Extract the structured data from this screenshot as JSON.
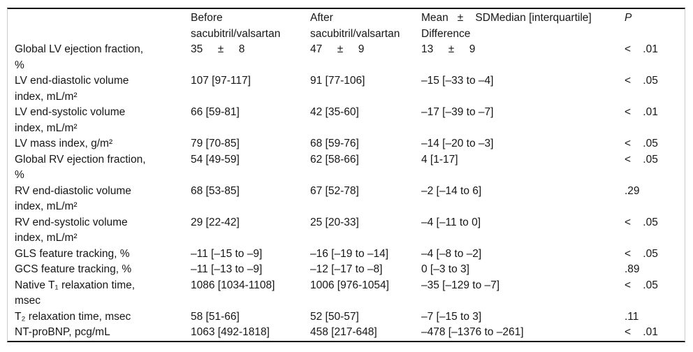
{
  "table": {
    "col_headers": {
      "label": "",
      "before": "Before\nsacubitril/valsartan",
      "after": "After\nsacubitril/valsartan",
      "difference": "Mean   ±    SDMedian [interquartile]\nDifference",
      "p": "P"
    },
    "rows": [
      {
        "label": "Global LV ejection fraction,\n%",
        "before": "35     ±     8",
        "after": "47     ±     9",
        "difference": "13     ±     9",
        "p": "<    .01"
      },
      {
        "label": "LV end-diastolic volume\nindex, mL/m²",
        "before": "107 [97-117]",
        "after": "91 [77-106]",
        "difference": "–15 [–33 to –4]",
        "p": "<    .05"
      },
      {
        "label": "LV end-systolic volume\nindex, mL/m²",
        "before": "66 [59-81]",
        "after": "42 [35-60]",
        "difference": "–17 [–39 to –7]",
        "p": "<    .01"
      },
      {
        "label": "LV mass index, g/m²",
        "before": "79 [70-85]",
        "after": "68 [59-76]",
        "difference": "–14 [–20 to –3]",
        "p": "<    .05"
      },
      {
        "label": "Global RV ejection fraction,\n%",
        "before": "54 [49-59]",
        "after": "62 [58-66]",
        "difference": "4 [1-17]",
        "p": "<    .05"
      },
      {
        "label": "RV end-diastolic volume\nindex, mL/m²",
        "before": "68 [53-85]",
        "after": "67 [52-78]",
        "difference": "–2 [–14 to 6]",
        "p": ".29"
      },
      {
        "label": "RV end-systolic volume\nindex, mL/m²",
        "before": "29 [22-42]",
        "after": "25 [20-33]",
        "difference": "–4 [–11 to 0]",
        "p": "<    .05"
      },
      {
        "label": "GLS feature tracking, %",
        "before": "–11 [–15 to –9]",
        "after": "–16 [–19 to –14]",
        "difference": "–4 [–8 to –2]",
        "p": "<    .05"
      },
      {
        "label": "GCS feature tracking, %",
        "before": "–11 [–13 to –9]",
        "after": "–12 [–17 to –8]",
        "difference": "0 [–3 to 3]",
        "p": ".89"
      },
      {
        "label": "Native T₁ relaxation time,\nmsec",
        "before": "1086 [1034-1108]",
        "after": "1006 [976-1054]",
        "difference": "–35 [–129 to –7]",
        "p": "<    .05"
      },
      {
        "label": "T₂ relaxation time, msec",
        "before": "58 [51-66]",
        "after": "52 [50-57]",
        "difference": "–7 [–15 to 3]",
        "p": ".11"
      },
      {
        "label": "NT-proBNP, pcg/mL",
        "before": "1063 [492-1818]",
        "after": "458 [217-648]",
        "difference": "–478 [–1376 to –261]",
        "p": "<    .01"
      }
    ]
  }
}
